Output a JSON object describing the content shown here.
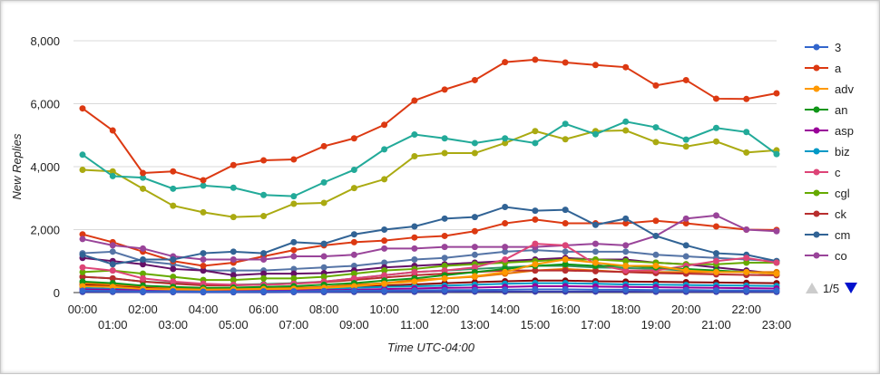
{
  "chart_data": {
    "type": "line",
    "xlabel": "Time UTC-04:00",
    "ylabel": "New Replies",
    "ylim": [
      0,
      8000
    ],
    "yticks": [
      "0",
      "2,000",
      "4,000",
      "6,000",
      "8,000"
    ],
    "ytick_values": [
      0,
      2000,
      4000,
      6000,
      8000
    ],
    "grid": true,
    "legend_position": "right",
    "categories": [
      "00:00",
      "01:00",
      "02:00",
      "03:00",
      "04:00",
      "05:00",
      "06:00",
      "07:00",
      "08:00",
      "09:00",
      "10:00",
      "11:00",
      "12:00",
      "13:00",
      "14:00",
      "15:00",
      "16:00",
      "17:00",
      "18:00",
      "19:00",
      "20:00",
      "21:00",
      "22:00",
      "23:00"
    ],
    "series": [
      {
        "name": "3",
        "color": "#3366cc",
        "values": [
          60,
          50,
          40,
          40,
          30,
          30,
          40,
          40,
          50,
          60,
          60,
          70,
          80,
          80,
          90,
          100,
          100,
          90,
          90,
          80,
          80,
          70,
          70,
          60
        ]
      },
      {
        "name": "a",
        "color": "#dc3912",
        "values": [
          5850,
          5150,
          3800,
          3850,
          3570,
          4050,
          4200,
          4230,
          4650,
          4900,
          5330,
          6100,
          6450,
          6750,
          7320,
          7400,
          7310,
          7230,
          7160,
          6580,
          6750,
          6160,
          6150,
          6330
        ]
      },
      {
        "name": "adv",
        "color": "#ff9900",
        "values": [
          200,
          180,
          120,
          100,
          90,
          100,
          110,
          120,
          150,
          200,
          280,
          350,
          450,
          520,
          650,
          900,
          1050,
          950,
          850,
          850,
          700,
          650,
          650,
          600
        ]
      },
      {
        "name": "an",
        "color": "#109618",
        "values": [
          350,
          300,
          220,
          180,
          150,
          160,
          180,
          200,
          250,
          300,
          380,
          450,
          550,
          650,
          750,
          850,
          900,
          850,
          850,
          800,
          750,
          700,
          650,
          600
        ]
      },
      {
        "name": "asp",
        "color": "#990099",
        "values": [
          100,
          90,
          70,
          60,
          50,
          60,
          60,
          70,
          80,
          90,
          110,
          130,
          150,
          160,
          180,
          200,
          200,
          190,
          180,
          170,
          160,
          150,
          140,
          130
        ]
      },
      {
        "name": "biz",
        "color": "#0099c6",
        "values": [
          150,
          120,
          100,
          90,
          80,
          80,
          90,
          100,
          120,
          150,
          180,
          200,
          220,
          250,
          280,
          300,
          300,
          280,
          260,
          250,
          240,
          230,
          220,
          210
        ]
      },
      {
        "name": "c",
        "color": "#dd4477",
        "values": [
          800,
          700,
          450,
          350,
          280,
          250,
          250,
          280,
          350,
          450,
          550,
          650,
          700,
          800,
          1050,
          1550,
          1500,
          900,
          700,
          700,
          850,
          1000,
          1100,
          950
        ]
      },
      {
        "name": "cgl",
        "color": "#66aa00",
        "values": [
          650,
          700,
          600,
          500,
          400,
          400,
          450,
          450,
          500,
          600,
          700,
          750,
          850,
          900,
          950,
          1000,
          1050,
          1050,
          1000,
          950,
          900,
          900,
          950,
          950
        ]
      },
      {
        "name": "ck",
        "color": "#b82e2e",
        "values": [
          500,
          450,
          350,
          280,
          230,
          230,
          250,
          280,
          330,
          400,
          480,
          550,
          600,
          650,
          700,
          700,
          700,
          680,
          650,
          620,
          600,
          580,
          560,
          550
        ]
      },
      {
        "name": "cm",
        "color": "#316395",
        "values": [
          1200,
          900,
          1050,
          1050,
          1250,
          1300,
          1250,
          1600,
          1550,
          1850,
          2000,
          2100,
          2350,
          2400,
          2720,
          2600,
          2630,
          2150,
          2350,
          1800,
          1500,
          1250,
          1200,
          1000
        ]
      },
      {
        "name": "co",
        "color": "#994499",
        "values": [
          1700,
          1500,
          1400,
          1150,
          1050,
          1050,
          1050,
          1150,
          1150,
          1200,
          1400,
          1400,
          1450,
          1450,
          1450,
          1450,
          1500,
          1550,
          1500,
          1800,
          2350,
          2450,
          2000,
          1950
        ]
      },
      {
        "name": "",
        "color": "#22aa99",
        "values": [
          4380,
          3700,
          3650,
          3300,
          3400,
          3330,
          3100,
          3060,
          3500,
          3900,
          4550,
          5020,
          4900,
          4750,
          4900,
          4750,
          5360,
          5030,
          5430,
          5250,
          4860,
          5230,
          5100,
          4400
        ]
      },
      {
        "name": "",
        "color": "#aaaa11",
        "values": [
          3900,
          3850,
          3300,
          2760,
          2550,
          2400,
          2430,
          2820,
          2850,
          3320,
          3600,
          4330,
          4430,
          4430,
          4750,
          5130,
          4870,
          5130,
          5150,
          4780,
          4640,
          4800,
          4450,
          4520
        ]
      },
      {
        "name": "",
        "color": "#e67300",
        "values": [
          300,
          250,
          200,
          150,
          120,
          120,
          130,
          150,
          180,
          250,
          300,
          400,
          450,
          500,
          600,
          700,
          750,
          700,
          650,
          650,
          650,
          650,
          650,
          650
        ]
      },
      {
        "name": "",
        "color": "#dc3912",
        "values": [
          1850,
          1600,
          1300,
          1000,
          850,
          950,
          1150,
          1350,
          1500,
          1600,
          1650,
          1750,
          1800,
          1950,
          2200,
          2320,
          2200,
          2200,
          2200,
          2280,
          2200,
          2100,
          2000,
          1990
        ]
      },
      {
        "name": "",
        "color": "#8b0707",
        "values": [
          250,
          200,
          150,
          120,
          100,
          100,
          110,
          130,
          150,
          180,
          220,
          260,
          300,
          330,
          360,
          380,
          380,
          360,
          350,
          340,
          330,
          320,
          310,
          300
        ]
      },
      {
        "name": "",
        "color": "#651067",
        "values": [
          1100,
          1000,
          900,
          750,
          700,
          550,
          600,
          600,
          620,
          700,
          800,
          850,
          900,
          950,
          1000,
          1050,
          1100,
          1050,
          1050,
          950,
          900,
          800,
          700,
          600
        ]
      },
      {
        "name": "",
        "color": "#329262",
        "values": [
          500,
          450,
          350,
          300,
          250,
          250,
          270,
          300,
          350,
          450,
          550,
          650,
          700,
          750,
          800,
          850,
          850,
          800,
          780,
          750,
          700,
          680,
          660,
          640
        ]
      },
      {
        "name": "",
        "color": "#5574a6",
        "values": [
          1250,
          1300,
          1000,
          900,
          700,
          700,
          700,
          750,
          800,
          850,
          950,
          1050,
          1100,
          1200,
          1300,
          1350,
          1300,
          1300,
          1300,
          1200,
          1150,
          1100,
          1050,
          1000
        ]
      },
      {
        "name": "",
        "color": "#3b3eac",
        "values": [
          20,
          20,
          15,
          15,
          10,
          10,
          10,
          15,
          15,
          20,
          20,
          25,
          25,
          30,
          30,
          30,
          30,
          30,
          30,
          25,
          25,
          25,
          20,
          20
        ]
      }
    ]
  },
  "legend": {
    "items": [
      {
        "label": "3",
        "color": "#3366cc"
      },
      {
        "label": "a",
        "color": "#dc3912"
      },
      {
        "label": "adv",
        "color": "#ff9900"
      },
      {
        "label": "an",
        "color": "#109618"
      },
      {
        "label": "asp",
        "color": "#990099"
      },
      {
        "label": "biz",
        "color": "#0099c6"
      },
      {
        "label": "c",
        "color": "#dd4477"
      },
      {
        "label": "cgl",
        "color": "#66aa00"
      },
      {
        "label": "ck",
        "color": "#b82e2e"
      },
      {
        "label": "cm",
        "color": "#316395"
      },
      {
        "label": "co",
        "color": "#994499"
      }
    ],
    "pager_text": "1/5",
    "prev_icon": "triangle-up-icon",
    "next_icon": "triangle-down-icon"
  }
}
